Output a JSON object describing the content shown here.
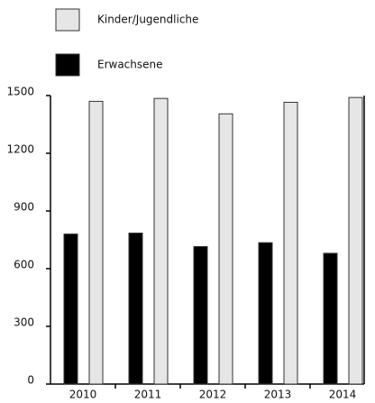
{
  "chart_data": {
    "type": "bar",
    "categories": [
      "2010",
      "2011",
      "2012",
      "2013",
      "2014"
    ],
    "series": [
      {
        "name": "Kinder/Jugendliche",
        "color": "#e6e6e6",
        "values": [
          1470,
          1485,
          1405,
          1465,
          1490
        ]
      },
      {
        "name": "Erwachsene",
        "color": "#000000",
        "values": [
          780,
          785,
          715,
          735,
          680
        ]
      }
    ],
    "ylim": [
      0,
      1500
    ],
    "yticks": [
      0,
      300,
      600,
      900,
      1200,
      1500
    ]
  }
}
